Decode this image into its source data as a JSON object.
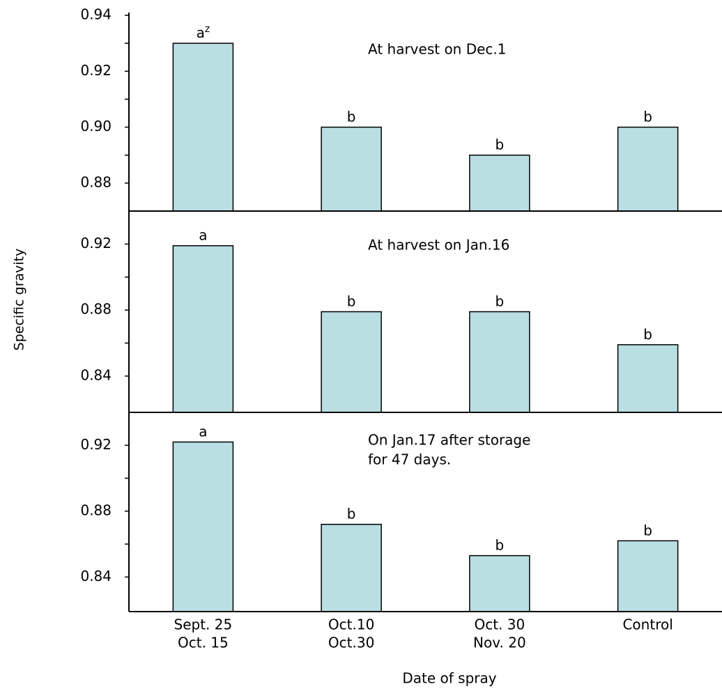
{
  "chart_data": [
    {
      "type": "bar",
      "title": [
        "At harvest on Dec.1"
      ],
      "values": [
        0.93,
        0.9,
        0.89,
        0.9
      ],
      "letters": [
        "a",
        "b",
        "b",
        "b"
      ],
      "letter_superscripts": [
        "z",
        null,
        null,
        null
      ],
      "ylim": [
        0.87,
        0.94
      ],
      "yticks": [
        0.94,
        0.92,
        {
          "value": 0.9,
          "label": "0.90"
        },
        0.88
      ],
      "minor_yticks": [
        0.93,
        0.91,
        0.89
      ],
      "color": "#b9dfe3"
    },
    {
      "type": "bar",
      "title": [
        "At harvest on Jan.16"
      ],
      "values": [
        0.919,
        0.879,
        0.879,
        0.859
      ],
      "letters": [
        "a",
        "b",
        "b",
        "b"
      ],
      "ylim": [
        0.818,
        0.94
      ],
      "yticks": [
        0.92,
        0.88,
        0.84
      ],
      "minor_yticks": [
        0.9,
        0.86
      ],
      "color": "#b9dfe3"
    },
    {
      "type": "bar",
      "title": [
        "On Jan.17 after storage",
        "for 47 days."
      ],
      "values": [
        0.922,
        0.872,
        0.853,
        0.862
      ],
      "letters": [
        "a",
        "b",
        "b",
        "b"
      ],
      "ylim": [
        0.819,
        0.94
      ],
      "yticks": [
        0.92,
        0.88,
        0.84
      ],
      "minor_yticks": [
        0.9,
        0.86
      ],
      "categories": [
        [
          "Sept. 25",
          "Oct. 15"
        ],
        [
          "Oct.10",
          "Oct.30"
        ],
        [
          "Oct. 30",
          "Nov. 20"
        ],
        [
          "Control"
        ]
      ],
      "xlabel": "Date of spray",
      "color": "#b9dfe3"
    }
  ],
  "y_label": "Specific gravity"
}
